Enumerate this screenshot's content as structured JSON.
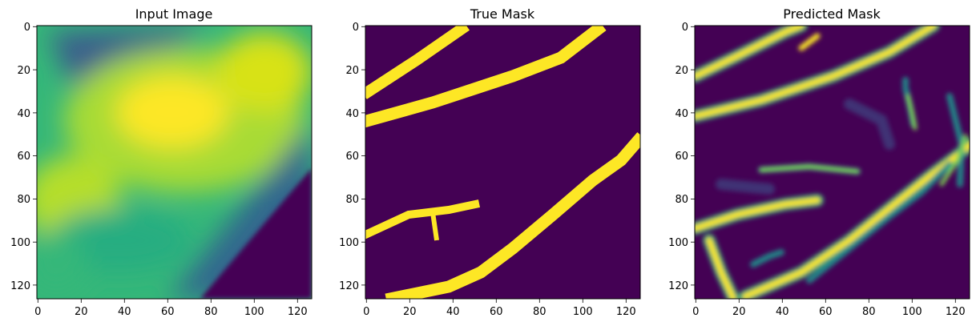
{
  "chart_data": [
    {
      "type": "heatmap",
      "title": "Input Image",
      "colormap": "viridis",
      "xlim": [
        0,
        127
      ],
      "ylim": [
        127,
        0
      ],
      "xticks": [
        "0",
        "20",
        "40",
        "60",
        "80",
        "100",
        "120"
      ],
      "yticks": [
        "0",
        "20",
        "40",
        "60",
        "80",
        "100",
        "120"
      ],
      "grid": false
    },
    {
      "type": "heatmap",
      "title": "True Mask",
      "colormap": "viridis",
      "xlim": [
        0,
        127
      ],
      "ylim": [
        127,
        0
      ],
      "xticks": [
        "0",
        "20",
        "40",
        "60",
        "80",
        "100",
        "120"
      ],
      "yticks": [
        "0",
        "20",
        "40",
        "60",
        "80",
        "100",
        "120"
      ],
      "grid": false
    },
    {
      "type": "heatmap",
      "title": "Predicted Mask",
      "colormap": "viridis",
      "xlim": [
        0,
        127
      ],
      "ylim": [
        127,
        0
      ],
      "xticks": [
        "0",
        "20",
        "40",
        "60",
        "80",
        "100",
        "120"
      ],
      "yticks": [
        "0",
        "20",
        "40",
        "60",
        "80",
        "100",
        "120"
      ],
      "grid": false
    }
  ],
  "colors": {
    "viridis_low": "#440154",
    "viridis_mid": "#21918c",
    "viridis_green": "#35b779",
    "viridis_high": "#fde725"
  }
}
